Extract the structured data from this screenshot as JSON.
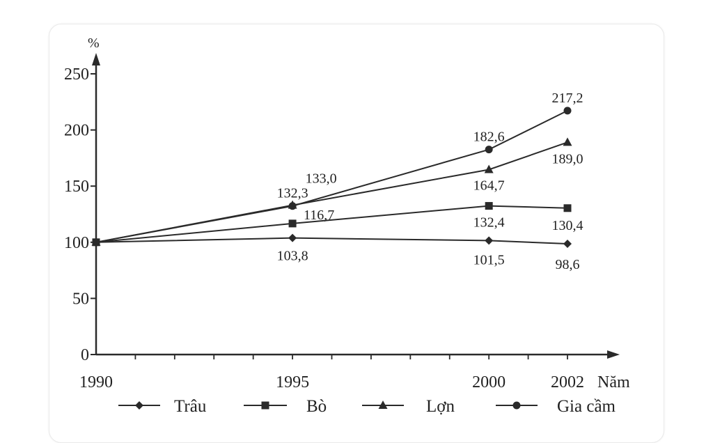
{
  "chart_data": {
    "type": "line",
    "ylabel": "%",
    "xlabel": "Năm",
    "x": [
      1990,
      1995,
      2000,
      2002
    ],
    "ylim": [
      0,
      250
    ],
    "yticks": [
      0,
      50,
      100,
      150,
      200,
      250
    ],
    "grid": false,
    "legend_position": "bottom",
    "series": [
      {
        "name": "Trâu",
        "marker": "diamond",
        "values": [
          100,
          103.8,
          101.5,
          98.6
        ],
        "labels": [
          "",
          "103,8",
          "101,5",
          "98,6"
        ]
      },
      {
        "name": "Bò",
        "marker": "square",
        "values": [
          100,
          116.7,
          132.4,
          130.4
        ],
        "labels": [
          "",
          "116,7",
          "132,4",
          "130,4"
        ]
      },
      {
        "name": "Lợn",
        "marker": "triangle",
        "values": [
          100,
          133.0,
          164.7,
          189.0
        ],
        "labels": [
          "",
          "133,0",
          "164,7",
          "189,0"
        ]
      },
      {
        "name": "Gia cầm",
        "marker": "circle",
        "values": [
          100,
          132.3,
          182.6,
          217.2
        ],
        "labels": [
          "",
          "132,3",
          "182,6",
          "217,2"
        ]
      }
    ]
  }
}
